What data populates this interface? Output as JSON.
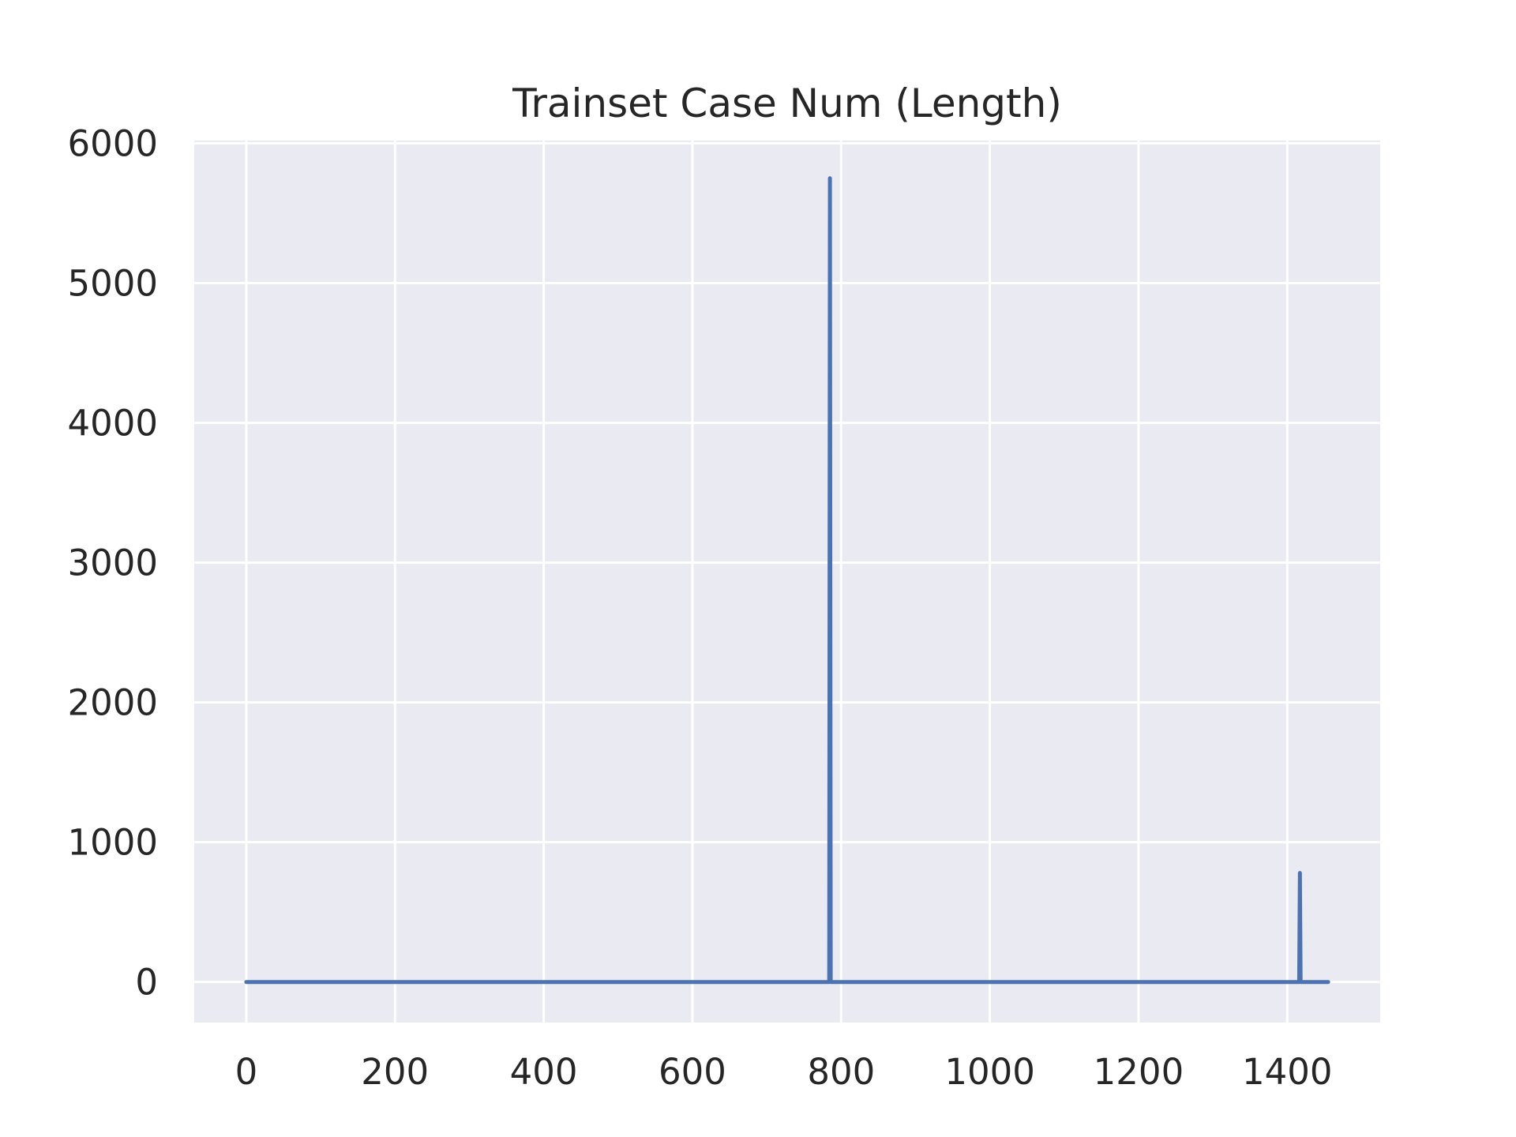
{
  "chart_data": {
    "type": "line",
    "title": "Trainset Case Num (Length)",
    "xlabel": "",
    "ylabel": "",
    "xlim": [
      -70,
      1525
    ],
    "ylim": [
      -290,
      6020
    ],
    "x_ticks": [
      0,
      200,
      400,
      600,
      800,
      1000,
      1200,
      1400
    ],
    "y_ticks": [
      0,
      1000,
      2000,
      3000,
      4000,
      5000,
      6000
    ],
    "grid": true,
    "legend": "none",
    "background_color": "#eaeaf2",
    "grid_color": "#ffffff",
    "line_color": "#4c72b0",
    "series": [
      {
        "x": [
          0,
          200,
          400,
          600,
          780,
          784,
          785,
          786,
          790,
          1000,
          1200,
          1413,
          1416,
          1417,
          1418,
          1455
        ],
        "y": [
          0,
          0,
          0,
          0,
          0,
          0,
          5750,
          0,
          0,
          0,
          0,
          0,
          0,
          780,
          0,
          0
        ]
      }
    ]
  }
}
